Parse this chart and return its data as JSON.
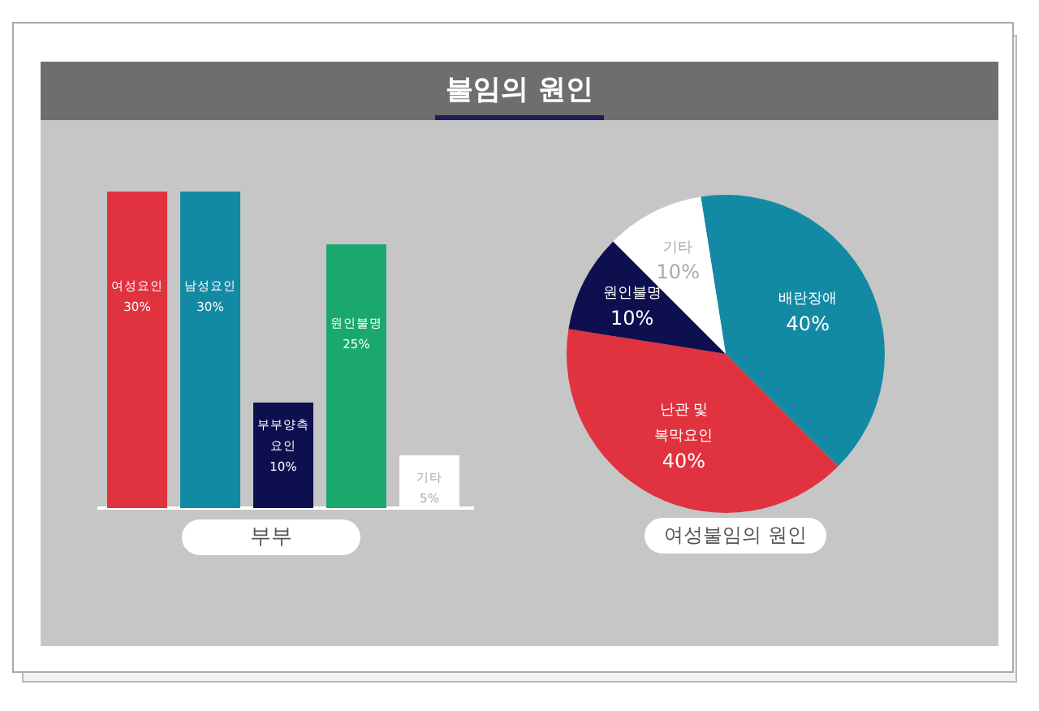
{
  "chart_data": [
    {
      "type": "bar",
      "title": "불임의 원인",
      "xlabel": "부부",
      "categories": [
        "여성요인",
        "남성요인",
        "부부양측 요인",
        "원인불명",
        "기타"
      ],
      "values": [
        30,
        30,
        10,
        25,
        5
      ],
      "value_labels": [
        "30%",
        "30%",
        "10%",
        "25%",
        "5%"
      ],
      "colors": [
        "#e0323f",
        "#138aa4",
        "#0e0f4f",
        "#1aa86e",
        "#ffffff"
      ]
    },
    {
      "type": "pie",
      "xlabel": "여성불임의 원인",
      "categories": [
        "배란장애",
        "난관 및 복막요인",
        "원인불명",
        "기타"
      ],
      "values": [
        40,
        40,
        10,
        10
      ],
      "value_labels": [
        "40%",
        "40%",
        "10%",
        "10%"
      ],
      "colors": [
        "#138aa4",
        "#e0323f",
        "#0e0f4f",
        "#ffffff"
      ]
    }
  ]
}
